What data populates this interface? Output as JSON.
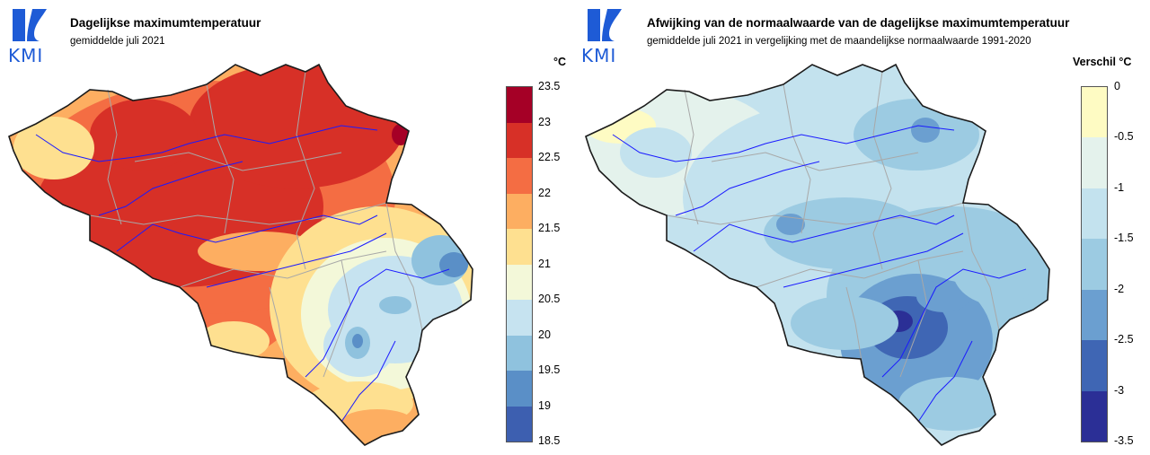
{
  "left": {
    "logo_text": "KMI",
    "title": "Dagelijkse maximumtemperatuur",
    "subtitle": "gemiddelde juli 2021",
    "unit": "°C",
    "legend_ticks": [
      "23.5",
      "23",
      "22.5",
      "22",
      "21.5",
      "21",
      "20.5",
      "20",
      "19.5",
      "19",
      "18.5"
    ],
    "legend_colors": [
      "#a50026",
      "#d73027",
      "#f46d43",
      "#fdae61",
      "#fee090",
      "#f3f8d9",
      "#c6e3f0",
      "#8fc2de",
      "#5a8fc7",
      "#3d5fb0",
      "#313695"
    ]
  },
  "right": {
    "logo_text": "KMI",
    "title": "Afwijking van de normaalwaarde van de dagelijkse maximumtemperatuur",
    "subtitle": "gemiddelde juli 2021 in vergelijking met de maandelijkse normaalwaarde 1991-2020",
    "unit": "Verschil °C",
    "legend_ticks": [
      "0",
      "-0.5",
      "-1",
      "-1.5",
      "-2",
      "-2.5",
      "-3",
      "-3.5"
    ],
    "legend_colors": [
      "#fefbc3",
      "#e4f2ec",
      "#c3e2ee",
      "#9ccbe2",
      "#6b9fd0",
      "#3f66b4",
      "#2b2f96"
    ]
  }
}
